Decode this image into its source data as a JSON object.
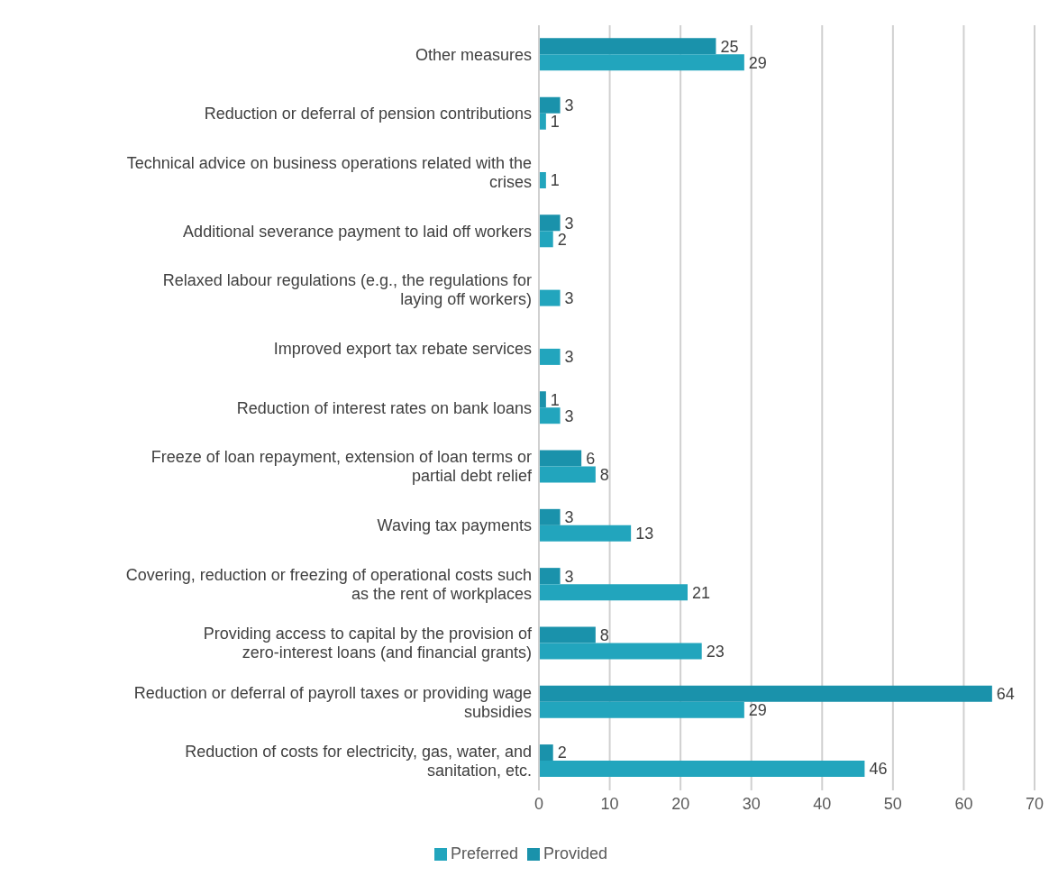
{
  "chart_data": {
    "type": "bar",
    "orientation": "horizontal",
    "categories": [
      "Other measures",
      "Reduction or deferral of pension contributions",
      "Technical advice on business operations related with the crises",
      "Additional severance payment to laid off workers",
      "Relaxed labour regulations (e.g., the regulations for laying off workers)",
      "Improved export tax rebate services",
      "Reduction of interest rates on bank loans",
      "Freeze of loan repayment, extension of loan terms or partial debt relief",
      "Waving tax payments",
      "Covering, reduction or freezing of operational costs such as the rent of workplaces",
      "Providing access to capital by the provision of zero-interest loans (and financial grants)",
      "Reduction or deferral of payroll taxes or providing wage subsidies",
      "Reduction of costs for electricity, gas, water, and sanitation, etc."
    ],
    "series": [
      {
        "name": "Provided",
        "color": "#1a92ab",
        "values": [
          25,
          3,
          null,
          3,
          null,
          null,
          1,
          6,
          3,
          3,
          8,
          64,
          2
        ]
      },
      {
        "name": "Preferred",
        "color": "#22a5bd",
        "values": [
          29,
          1,
          1,
          2,
          3,
          3,
          3,
          8,
          13,
          21,
          23,
          29,
          46
        ]
      }
    ],
    "xlim": [
      0,
      70
    ],
    "xticks": [
      0,
      10,
      20,
      30,
      40,
      50,
      60,
      70
    ],
    "grid": "x",
    "legend": "bottom",
    "data_labels": true
  }
}
